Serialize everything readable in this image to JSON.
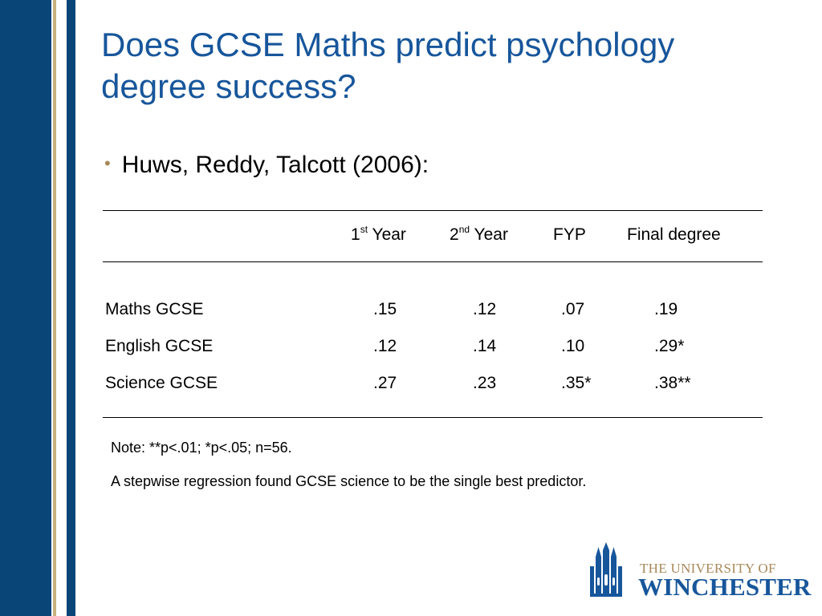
{
  "slide": {
    "title": "Does GCSE Maths predict psychology degree success?",
    "bullet": "Huws, Reddy, Talcott (2006):"
  },
  "table": {
    "headers": [
      {
        "main": "1",
        "sup": "st",
        "rest": " Year"
      },
      {
        "main": "2",
        "sup": "nd",
        "rest": " Year"
      },
      {
        "main": "FYP",
        "sup": "",
        "rest": ""
      },
      {
        "main": "Final degree",
        "sup": "",
        "rest": ""
      }
    ],
    "rows": [
      {
        "label": "Maths GCSE",
        "values": [
          ".15",
          ".12",
          ".07",
          ".19"
        ]
      },
      {
        "label": "English GCSE",
        "values": [
          ".12",
          ".14",
          ".10",
          ".29*"
        ]
      },
      {
        "label": "Science GCSE",
        "values": [
          ".27",
          ".23",
          ".35*",
          ".38**"
        ]
      }
    ]
  },
  "notes": {
    "line1": "Note: **p<.01; *p<.05; n=56.",
    "line2": "A stepwise regression found GCSE science to be the single best predictor."
  },
  "logo": {
    "line1": "THE UNIVERSITY OF",
    "line2": "WINCHESTER"
  },
  "colors": {
    "title": "#17569b",
    "band": "#0a4578",
    "accent": "#a8895a"
  }
}
